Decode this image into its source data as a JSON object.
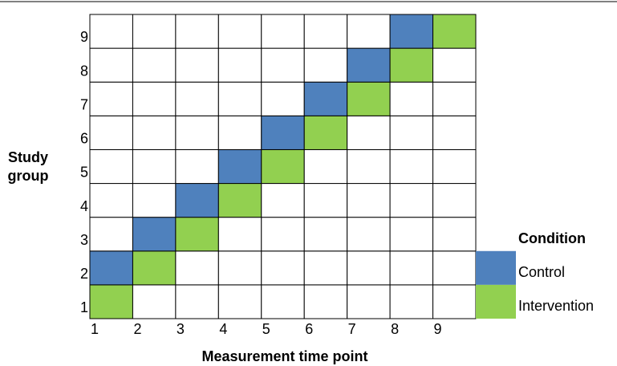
{
  "axis_labels": {
    "y": [
      "Study",
      "group"
    ],
    "x": "Measurement time point"
  },
  "groups": [
    "1",
    "2",
    "3",
    "4",
    "5",
    "6",
    "7",
    "8",
    "9"
  ],
  "time_points": [
    "1",
    "2",
    "3",
    "4",
    "5",
    "6",
    "7",
    "8",
    "9"
  ],
  "legend": {
    "title": "Condition",
    "items": [
      {
        "name": "Control",
        "color": "#4f81bd"
      },
      {
        "name": "Intervention",
        "color": "#92d050"
      }
    ]
  },
  "grid": [
    [
      "Intervention",
      null,
      null,
      null,
      null,
      null,
      null,
      null,
      null
    ],
    [
      "Control",
      "Intervention",
      null,
      null,
      null,
      null,
      null,
      null,
      null
    ],
    [
      null,
      "Control",
      "Intervention",
      null,
      null,
      null,
      null,
      null,
      null
    ],
    [
      null,
      null,
      "Control",
      "Intervention",
      null,
      null,
      null,
      null,
      null
    ],
    [
      null,
      null,
      null,
      "Control",
      "Intervention",
      null,
      null,
      null,
      null
    ],
    [
      null,
      null,
      null,
      null,
      "Control",
      "Intervention",
      null,
      null,
      null
    ],
    [
      null,
      null,
      null,
      null,
      null,
      "Control",
      "Intervention",
      null,
      null
    ],
    [
      null,
      null,
      null,
      null,
      null,
      null,
      "Control",
      "Intervention",
      null
    ],
    [
      null,
      null,
      null,
      null,
      null,
      null,
      null,
      "Control",
      "Intervention"
    ]
  ]
}
